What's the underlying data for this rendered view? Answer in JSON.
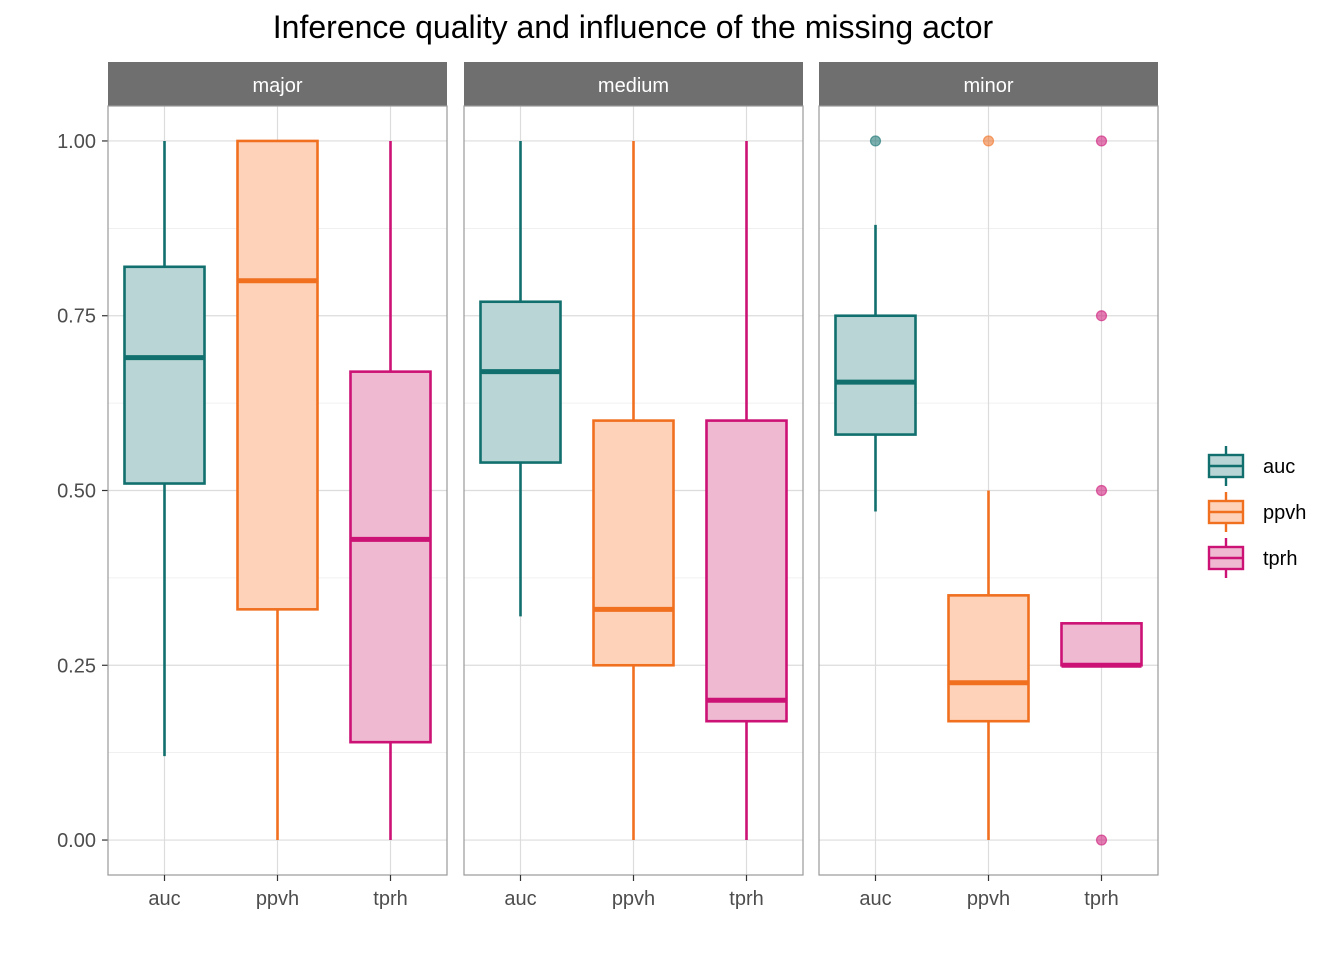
{
  "chart_data": {
    "type": "boxplot",
    "title": "Inference quality and influence of the missing actor",
    "xlabel": "",
    "ylabel": "",
    "ylim": [
      -0.05,
      1.05
    ],
    "yticks": [
      0,
      0.25,
      0.5,
      0.75,
      1.0
    ],
    "ytick_labels": [
      "0.00",
      "0.25",
      "0.50",
      "0.75",
      "1.00"
    ],
    "categories": [
      "auc",
      "ppvh",
      "tprh"
    ],
    "colors": {
      "auc": "#11706e",
      "ppvh": "#f07020",
      "tprh": "#cc1275"
    },
    "fills": {
      "auc": "#b9d5d5",
      "ppvh": "#fdd2b9",
      "tprh": "#efb9d2"
    },
    "legend": {
      "position": "right",
      "entries": [
        "auc",
        "ppvh",
        "tprh"
      ]
    },
    "grid": true,
    "facets": [
      {
        "label": "major",
        "boxes": [
          {
            "category": "auc",
            "lower": 0.12,
            "q1": 0.51,
            "median": 0.69,
            "q3": 0.82,
            "upper": 1.0,
            "outliers": []
          },
          {
            "category": "ppvh",
            "lower": 0.0,
            "q1": 0.33,
            "median": 0.8,
            "q3": 1.0,
            "upper": 1.0,
            "outliers": []
          },
          {
            "category": "tprh",
            "lower": 0.0,
            "q1": 0.14,
            "median": 0.43,
            "q3": 0.67,
            "upper": 1.0,
            "outliers": []
          }
        ]
      },
      {
        "label": "medium",
        "boxes": [
          {
            "category": "auc",
            "lower": 0.32,
            "q1": 0.54,
            "median": 0.67,
            "q3": 0.77,
            "upper": 1.0,
            "outliers": []
          },
          {
            "category": "ppvh",
            "lower": 0.0,
            "q1": 0.25,
            "median": 0.33,
            "q3": 0.6,
            "upper": 1.0,
            "outliers": []
          },
          {
            "category": "tprh",
            "lower": 0.0,
            "q1": 0.17,
            "median": 0.2,
            "q3": 0.6,
            "upper": 1.0,
            "outliers": []
          }
        ]
      },
      {
        "label": "minor",
        "boxes": [
          {
            "category": "auc",
            "lower": 0.47,
            "q1": 0.58,
            "median": 0.655,
            "q3": 0.75,
            "upper": 0.88,
            "outliers": [
              1.0
            ]
          },
          {
            "category": "ppvh",
            "lower": 0.0,
            "q1": 0.17,
            "median": 0.225,
            "q3": 0.35,
            "upper": 0.5,
            "outliers": [
              1.0
            ]
          },
          {
            "category": "tprh",
            "lower": 0.25,
            "q1": 0.25,
            "median": 0.25,
            "q3": 0.31,
            "upper": 0.31,
            "outliers": [
              0.0,
              0.5,
              0.75,
              1.0
            ]
          }
        ]
      }
    ]
  }
}
